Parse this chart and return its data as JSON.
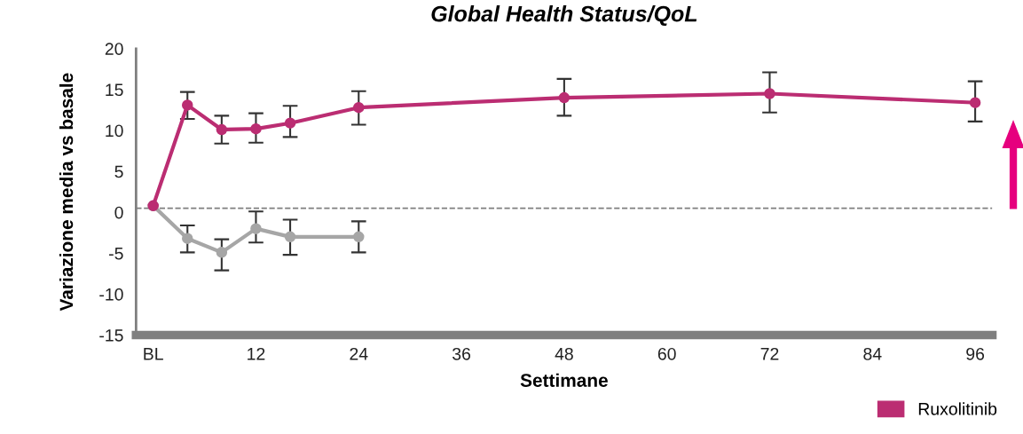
{
  "chart_data": {
    "type": "line",
    "title": "Global Health Status/QoL",
    "xlabel": "Settimane",
    "ylabel": "Variazione media vs basale",
    "x": [
      0,
      4,
      8,
      12,
      16,
      24,
      48,
      72,
      96
    ],
    "series": [
      {
        "name": "Ruxolitinib",
        "color": "#bb2d72",
        "values": [
          0.8,
          13.1,
          10.1,
          10.2,
          10.9,
          12.8,
          14.0,
          14.5,
          13.4
        ],
        "errors": [
          null,
          [
            11.4,
            14.7
          ],
          [
            8.4,
            11.8
          ],
          [
            8.5,
            12.1
          ],
          [
            9.2,
            13.0
          ],
          [
            10.7,
            14.8
          ],
          [
            11.8,
            16.3
          ],
          [
            12.2,
            17.1
          ],
          [
            11.1,
            16.0
          ]
        ]
      },
      {
        "color": "#a6a6a6",
        "x": [
          0,
          4,
          8,
          12,
          16,
          24
        ],
        "values": [
          0.8,
          -3.2,
          -4.9,
          -2.0,
          -3.0,
          -3.0
        ],
        "errors": [
          null,
          [
            -4.9,
            -1.6
          ],
          [
            -7.1,
            -3.3
          ],
          [
            -3.7,
            0.1
          ],
          [
            -5.2,
            -0.9
          ],
          [
            -4.9,
            -1.1
          ]
        ]
      }
    ],
    "xlim": [
      -2,
      98
    ],
    "xticks": [
      {
        "value": 0,
        "label": "BL"
      },
      12,
      24,
      36,
      48,
      60,
      72,
      84,
      96
    ],
    "ylim": [
      -15,
      20
    ],
    "yticks": [
      -15,
      -10,
      -5,
      0,
      5,
      10,
      15,
      20
    ],
    "ref_lines": [
      {
        "axis": "y",
        "value": 0.5,
        "color": "#7f7f7f",
        "line_style": "dashed"
      }
    ],
    "grid": false,
    "legend": "bottom right",
    "marker": "circle",
    "line_style": "solid"
  }
}
